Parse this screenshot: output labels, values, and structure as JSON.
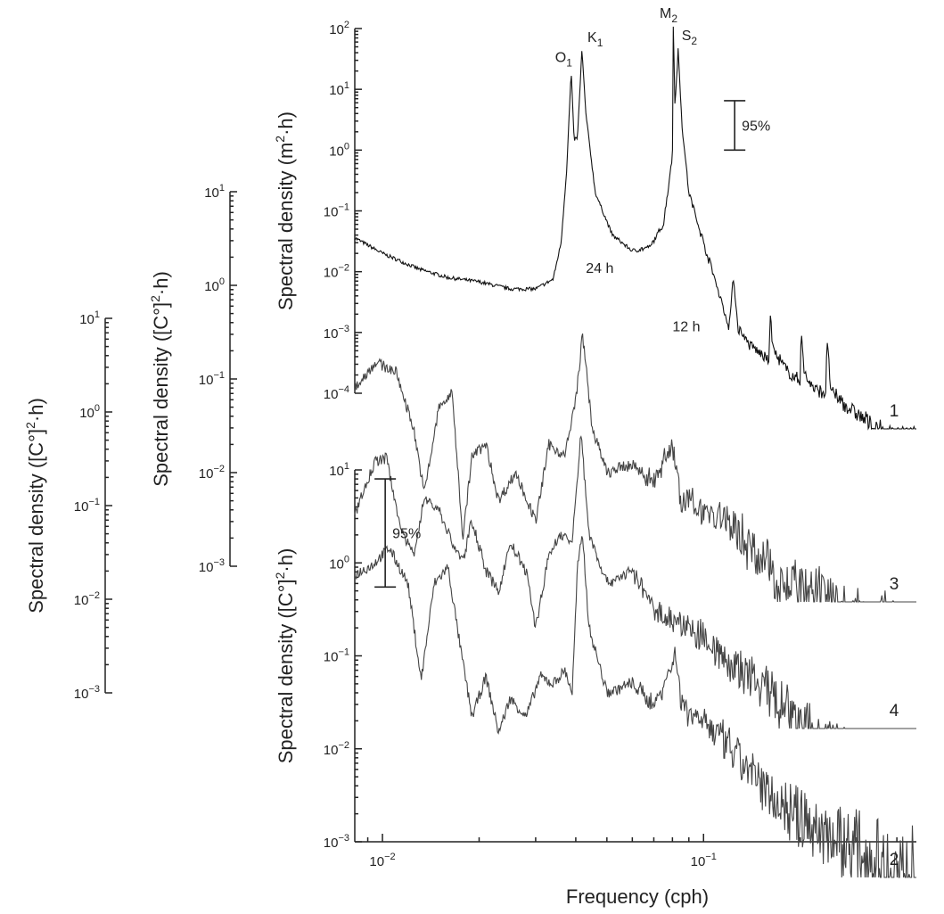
{
  "chart_data": {
    "type": "line",
    "xlabel": "Frequency (cph)",
    "xscale": "log",
    "xlim": [
      0.0082,
      0.46
    ],
    "x_ticks": [
      {
        "value": 0.01,
        "label": "10",
        "exp": "−2"
      },
      {
        "value": 0.1,
        "label": "10",
        "exp": "−1"
      }
    ],
    "axes": [
      {
        "id": "main",
        "ylabel": "Spectral density (m",
        "ylabel_sup": "2",
        "ylabel_end": "·h)",
        "ylim": [
          0.0001,
          100
        ],
        "ticks": [
          {
            "v": 100,
            "e": "2"
          },
          {
            "v": 10,
            "e": "1"
          },
          {
            "v": 1,
            "e": "0"
          },
          {
            "v": 0.1,
            "e": "−1"
          },
          {
            "v": 0.01,
            "e": "−2"
          },
          {
            "v": 0.001,
            "e": "−3"
          },
          {
            "v": 0.0001,
            "e": "−4"
          }
        ]
      },
      {
        "id": "lower",
        "ylabel": "Spectral density ([C°]",
        "ylabel_sup": "2",
        "ylabel_end": "·h)",
        "ylim": [
          0.001,
          10
        ],
        "ticks": [
          {
            "v": 10,
            "e": "1"
          },
          {
            "v": 1,
            "e": "0"
          },
          {
            "v": 0.1,
            "e": "−1"
          },
          {
            "v": 0.01,
            "e": "−2"
          },
          {
            "v": 0.001,
            "e": "−3"
          }
        ]
      },
      {
        "id": "offset1",
        "ylabel": "Spectral density ([C°]",
        "ylabel_sup": "2",
        "ylabel_end": "·h)",
        "ylim": [
          0.001,
          10
        ],
        "ticks": [
          {
            "v": 10,
            "e": "1"
          },
          {
            "v": 1,
            "e": "0"
          },
          {
            "v": 0.1,
            "e": "−1"
          },
          {
            "v": 0.01,
            "e": "−2"
          },
          {
            "v": 0.001,
            "e": "−3"
          }
        ]
      },
      {
        "id": "offset2",
        "ylabel": "Spectral density ([C°]",
        "ylabel_sup": "2",
        "ylabel_end": "·h)",
        "ylim": [
          0.001,
          10
        ],
        "ticks": [
          {
            "v": 10,
            "e": "1"
          },
          {
            "v": 1,
            "e": "0"
          },
          {
            "v": 0.1,
            "e": "−1"
          },
          {
            "v": 0.01,
            "e": "−2"
          },
          {
            "v": 0.001,
            "e": "−3"
          }
        ]
      }
    ],
    "series": [
      {
        "label": "1",
        "axis": "main",
        "color": "#111111",
        "points": [
          [
            0.0082,
            0.036
          ],
          [
            0.01,
            0.02
          ],
          [
            0.013,
            0.011
          ],
          [
            0.016,
            0.008
          ],
          [
            0.02,
            0.0068
          ],
          [
            0.025,
            0.0052
          ],
          [
            0.03,
            0.0052
          ],
          [
            0.034,
            0.0075
          ],
          [
            0.036,
            0.03
          ],
          [
            0.0375,
            0.5
          ],
          [
            0.0387,
            20
          ],
          [
            0.0395,
            1.5
          ],
          [
            0.0405,
            1.6
          ],
          [
            0.0418,
            45
          ],
          [
            0.043,
            4
          ],
          [
            0.046,
            0.2
          ],
          [
            0.052,
            0.04
          ],
          [
            0.06,
            0.022
          ],
          [
            0.068,
            0.025
          ],
          [
            0.075,
            0.06
          ],
          [
            0.08,
            0.8
          ],
          [
            0.0805,
            130
          ],
          [
            0.0815,
            5
          ],
          [
            0.0833,
            45
          ],
          [
            0.086,
            2
          ],
          [
            0.09,
            0.2
          ],
          [
            0.1,
            0.03
          ],
          [
            0.11,
            0.006
          ],
          [
            0.12,
            0.0012
          ],
          [
            0.124,
            0.008
          ],
          [
            0.128,
            0.0012
          ],
          [
            0.14,
            0.0006
          ],
          [
            0.16,
            0.00035
          ],
          [
            0.161,
            0.002
          ],
          [
            0.165,
            0.0005
          ],
          [
            0.18,
            0.00025
          ],
          [
            0.2,
            0.00015
          ],
          [
            0.2015,
            0.0015
          ],
          [
            0.205,
            0.00022
          ],
          [
            0.22,
            0.00012
          ],
          [
            0.24,
            0.0001
          ],
          [
            0.242,
            0.0007
          ],
          [
            0.25,
            0.0001
          ],
          [
            0.3,
            4.5e-05
          ],
          [
            0.35,
            2.5e-05
          ],
          [
            0.4,
            2e-05
          ],
          [
            0.46,
            1.8e-05
          ]
        ]
      },
      {
        "label": "2",
        "axis": "lower",
        "color": "#444444",
        "points": [
          [
            0.0082,
            0.75
          ],
          [
            0.0093,
            0.95
          ],
          [
            0.0105,
            1.45
          ],
          [
            0.012,
            0.6
          ],
          [
            0.0132,
            0.055
          ],
          [
            0.0145,
            0.6
          ],
          [
            0.016,
            0.9
          ],
          [
            0.0175,
            0.12
          ],
          [
            0.019,
            0.022
          ],
          [
            0.021,
            0.06
          ],
          [
            0.023,
            0.015
          ],
          [
            0.025,
            0.035
          ],
          [
            0.028,
            0.022
          ],
          [
            0.031,
            0.06
          ],
          [
            0.034,
            0.05
          ],
          [
            0.037,
            0.07
          ],
          [
            0.039,
            0.04
          ],
          [
            0.0405,
            0.9
          ],
          [
            0.042,
            2.0
          ],
          [
            0.044,
            0.2
          ],
          [
            0.05,
            0.04
          ],
          [
            0.06,
            0.05
          ],
          [
            0.07,
            0.03
          ],
          [
            0.08,
            0.08
          ],
          [
            0.082,
            0.12
          ],
          [
            0.085,
            0.03
          ],
          [
            0.1,
            0.02
          ],
          [
            0.12,
            0.01
          ],
          [
            0.15,
            0.004
          ],
          [
            0.2,
            0.0018
          ],
          [
            0.3,
            0.0008
          ],
          [
            0.4,
            0.00045
          ],
          [
            0.46,
            0.0004
          ]
        ]
      },
      {
        "label": "3",
        "axis": "offset1",
        "color": "#444444",
        "points": [
          [
            0.0082,
            0.08
          ],
          [
            0.0095,
            0.15
          ],
          [
            0.011,
            0.12
          ],
          [
            0.0125,
            0.03
          ],
          [
            0.0135,
            0.006
          ],
          [
            0.015,
            0.05
          ],
          [
            0.0165,
            0.07
          ],
          [
            0.0178,
            0.002
          ],
          [
            0.019,
            0.015
          ],
          [
            0.021,
            0.02
          ],
          [
            0.023,
            0.005
          ],
          [
            0.026,
            0.01
          ],
          [
            0.03,
            0.003
          ],
          [
            0.033,
            0.02
          ],
          [
            0.037,
            0.015
          ],
          [
            0.04,
            0.06
          ],
          [
            0.042,
            0.3
          ],
          [
            0.045,
            0.03
          ],
          [
            0.05,
            0.01
          ],
          [
            0.06,
            0.012
          ],
          [
            0.07,
            0.008
          ],
          [
            0.08,
            0.02
          ],
          [
            0.085,
            0.005
          ],
          [
            0.1,
            0.004
          ],
          [
            0.12,
            0.003
          ],
          [
            0.15,
            0.0012
          ],
          [
            0.2,
            0.0005
          ],
          [
            0.3,
            0.00025
          ],
          [
            0.4,
            0.00015
          ],
          [
            0.46,
            0.00012
          ]
        ]
      },
      {
        "label": "4",
        "axis": "offset2",
        "color": "#444444",
        "points": [
          [
            0.0082,
            0.08
          ],
          [
            0.0095,
            0.3
          ],
          [
            0.0103,
            0.32
          ],
          [
            0.0115,
            0.05
          ],
          [
            0.0125,
            0.03
          ],
          [
            0.0135,
            0.12
          ],
          [
            0.015,
            0.09
          ],
          [
            0.0165,
            0.04
          ],
          [
            0.0178,
            0.025
          ],
          [
            0.019,
            0.07
          ],
          [
            0.021,
            0.02
          ],
          [
            0.023,
            0.012
          ],
          [
            0.025,
            0.04
          ],
          [
            0.028,
            0.02
          ],
          [
            0.03,
            0.005
          ],
          [
            0.033,
            0.03
          ],
          [
            0.036,
            0.05
          ],
          [
            0.039,
            0.04
          ],
          [
            0.0415,
            0.6
          ],
          [
            0.044,
            0.05
          ],
          [
            0.05,
            0.015
          ],
          [
            0.06,
            0.02
          ],
          [
            0.07,
            0.008
          ],
          [
            0.08,
            0.006
          ],
          [
            0.1,
            0.004
          ],
          [
            0.12,
            0.002
          ],
          [
            0.15,
            0.0012
          ],
          [
            0.2,
            0.0004
          ],
          [
            0.3,
            0.00015
          ],
          [
            0.4,
            7e-05
          ],
          [
            0.46,
            6e-05
          ]
        ]
      }
    ],
    "annotations": [
      {
        "text": "O",
        "sub": "1",
        "axis": "main",
        "x": 0.0345,
        "y": 28
      },
      {
        "text": "K",
        "sub": "1",
        "axis": "main",
        "x": 0.0435,
        "y": 60
      },
      {
        "text": "M",
        "sub": "2",
        "axis": "main",
        "x": 0.073,
        "y": 150
      },
      {
        "text": "S",
        "sub": "2",
        "axis": "main",
        "x": 0.0855,
        "y": 65
      },
      {
        "text": "24 h",
        "axis": "main",
        "x": 0.043,
        "y": 0.0095
      },
      {
        "text": "12 h",
        "axis": "main",
        "x": 0.08,
        "y": 0.00105
      }
    ],
    "confidence_bars": [
      {
        "label": "95%",
        "axis": "main",
        "x": 0.125,
        "ylow": 1,
        "yhigh": 6.5
      },
      {
        "label": "95%",
        "axis": "lower",
        "x": 0.0102,
        "ylow": 0.55,
        "yhigh": 8
      }
    ]
  }
}
